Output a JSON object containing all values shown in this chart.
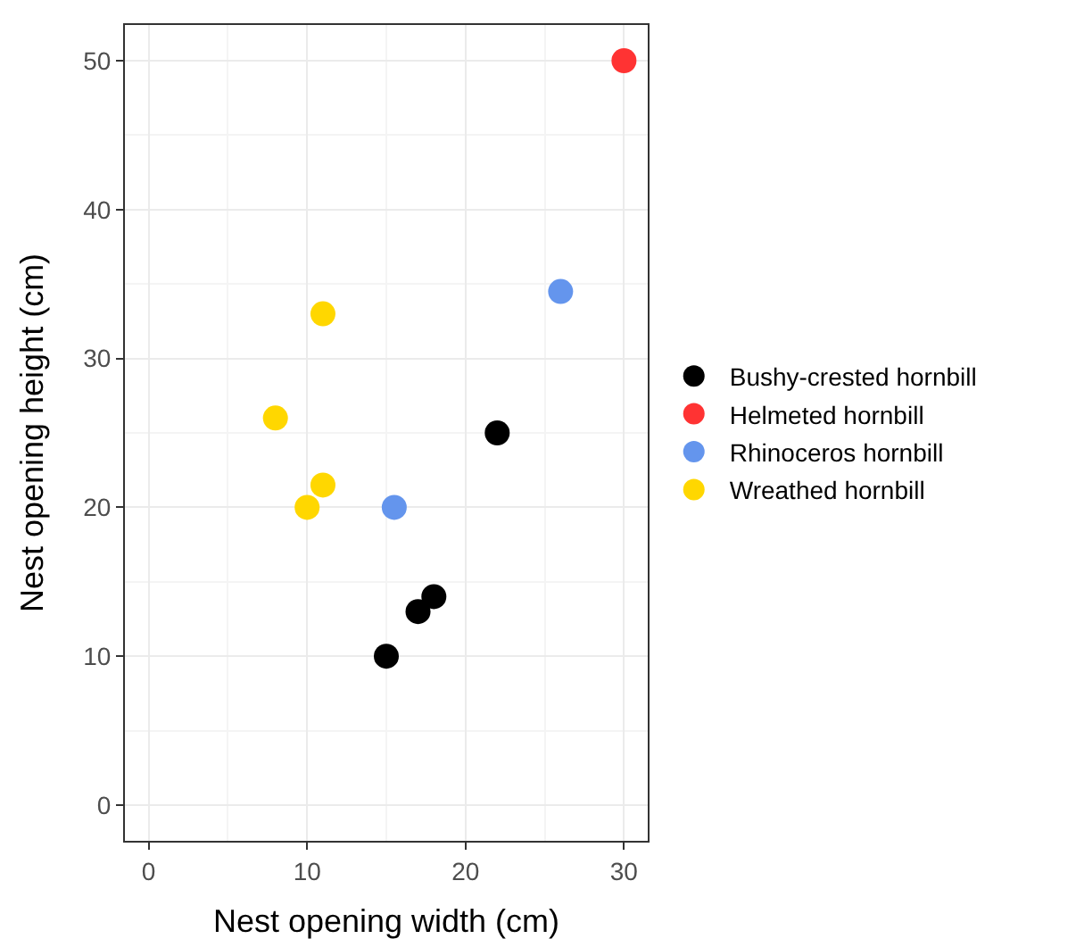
{
  "chart_data": {
    "type": "scatter",
    "xlabel": "Nest opening width (cm)",
    "ylabel": "Nest opening height (cm)",
    "xlim": [
      -1.5,
      31.5
    ],
    "xticks": [
      0,
      10,
      20,
      30
    ],
    "ylim": [
      -2.4,
      52.4
    ],
    "yticks": [
      0,
      10,
      20,
      30,
      40,
      50
    ],
    "grid": true,
    "legend": "right",
    "marker": "circle",
    "series": [
      {
        "name": "Bushy-crested hornbill",
        "color": "#000000",
        "x": [
          15,
          17,
          18,
          22
        ],
        "values": [
          10,
          13,
          14,
          25
        ]
      },
      {
        "name": "Helmeted hornbill",
        "color": "#ff3333",
        "x": [
          30
        ],
        "values": [
          50
        ]
      },
      {
        "name": "Rhinoceros hornbill",
        "color": "#6495ed",
        "x": [
          15.5,
          26
        ],
        "values": [
          20,
          34.5
        ]
      },
      {
        "name": "Wreathed hornbill",
        "color": "#ffd700",
        "x": [
          8,
          10,
          11,
          11
        ],
        "values": [
          26,
          20,
          21.5,
          33
        ]
      }
    ]
  }
}
